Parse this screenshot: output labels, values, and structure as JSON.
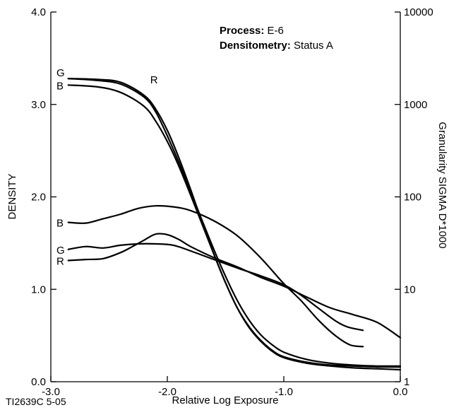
{
  "figure_code": "TI2639C 5-05",
  "annotations": {
    "process_label": "Process:",
    "process_value": " E-6",
    "densitometry_label": "Densitometry:",
    "densitometry_value": " Status A"
  },
  "chart_data": {
    "type": "line",
    "xlabel": "Relative Log Exposure",
    "ylabel": "DENSITY",
    "y2label": "Granularity SIGMA D*1000",
    "xlim": [
      -3.0,
      0.0
    ],
    "ylim": [
      0.0,
      4.0
    ],
    "y2lim": [
      1,
      10000
    ],
    "y2scale": "log",
    "grid": false,
    "x_ticks": [
      -3.0,
      -2.0,
      -1.0,
      0.0
    ],
    "x_tick_labels": [
      "-3.0",
      "-2.0",
      "-1.0",
      "0.0"
    ],
    "y_ticks": [
      0.0,
      1.0,
      2.0,
      3.0,
      4.0
    ],
    "y_tick_labels": [
      "0.0",
      "1.0",
      "2.0",
      "3.0",
      "4.0"
    ],
    "y2_ticks": [
      1,
      10,
      100,
      1000,
      10000
    ],
    "y2_tick_labels": [
      "1",
      "10",
      "100",
      "1000",
      "10000"
    ],
    "density_curves": [
      {
        "name": "G",
        "axis": "left",
        "x": [
          -2.85,
          -2.6,
          -2.4,
          -2.2,
          -2.1,
          -2.0,
          -1.9,
          -1.8,
          -1.7,
          -1.6,
          -1.5,
          -1.4,
          -1.3,
          -1.2,
          -1.1,
          -1.0,
          -0.8,
          -0.6,
          -0.4,
          -0.2,
          0.0
        ],
        "y": [
          3.28,
          3.27,
          3.24,
          3.1,
          2.95,
          2.72,
          2.42,
          2.08,
          1.72,
          1.38,
          1.07,
          0.8,
          0.6,
          0.45,
          0.34,
          0.27,
          0.21,
          0.18,
          0.17,
          0.16,
          0.16
        ]
      },
      {
        "name": "R",
        "axis": "left",
        "x": [
          -2.85,
          -2.6,
          -2.4,
          -2.2,
          -2.1,
          -2.0,
          -1.9,
          -1.8,
          -1.7,
          -1.6,
          -1.5,
          -1.4,
          -1.3,
          -1.2,
          -1.1,
          -1.0,
          -0.8,
          -0.6,
          -0.4,
          -0.2,
          0.0
        ],
        "y": [
          3.28,
          3.26,
          3.22,
          3.08,
          2.92,
          2.66,
          2.37,
          2.06,
          1.74,
          1.43,
          1.14,
          0.88,
          0.67,
          0.51,
          0.4,
          0.32,
          0.24,
          0.2,
          0.18,
          0.17,
          0.17
        ]
      },
      {
        "name": "B",
        "axis": "left",
        "x": [
          -2.85,
          -2.6,
          -2.4,
          -2.2,
          -2.1,
          -2.0,
          -1.9,
          -1.8,
          -1.7,
          -1.6,
          -1.5,
          -1.4,
          -1.3,
          -1.2,
          -1.1,
          -1.0,
          -0.8,
          -0.6,
          -0.4,
          -0.2,
          0.0
        ],
        "y": [
          3.21,
          3.19,
          3.13,
          2.98,
          2.82,
          2.6,
          2.33,
          2.02,
          1.7,
          1.38,
          1.07,
          0.8,
          0.59,
          0.44,
          0.33,
          0.26,
          0.2,
          0.17,
          0.15,
          0.14,
          0.13
        ]
      }
    ],
    "granularity_curves": [
      {
        "name": "B",
        "axis": "right",
        "x": [
          -2.85,
          -2.7,
          -2.55,
          -2.4,
          -2.25,
          -2.1,
          -1.95,
          -1.8,
          -1.6,
          -1.4,
          -1.2,
          -1.0,
          -0.85,
          -0.7,
          -0.55,
          -0.43,
          -0.32
        ],
        "y": [
          53,
          52,
          58,
          65,
          75,
          80,
          78,
          71,
          55,
          38,
          22,
          11.5,
          7.5,
          4.6,
          3.1,
          2.5,
          2.4
        ]
      },
      {
        "name": "G",
        "axis": "right",
        "x": [
          -2.85,
          -2.7,
          -2.55,
          -2.4,
          -2.25,
          -2.1,
          -1.95,
          -1.8,
          -1.6,
          -1.4,
          -1.2,
          -1.0,
          -0.85,
          -0.7,
          -0.55,
          -0.45,
          -0.32
        ],
        "y": [
          27,
          29,
          28,
          30,
          31,
          31,
          30,
          26,
          21,
          17,
          14,
          11.2,
          8.6,
          6.2,
          4.5,
          3.9,
          3.6
        ]
      },
      {
        "name": "R",
        "axis": "right",
        "x": [
          -2.85,
          -2.7,
          -2.55,
          -2.4,
          -2.3,
          -2.2,
          -2.1,
          -2.0,
          -1.9,
          -1.8,
          -1.6,
          -1.4,
          -1.2,
          -1.0,
          -0.8,
          -0.6,
          -0.4,
          -0.2,
          0.0
        ],
        "y": [
          20.5,
          21,
          21.5,
          25,
          29,
          34,
          39.5,
          39,
          34.5,
          29,
          22,
          17.5,
          13.5,
          10.8,
          8.2,
          6.3,
          5.3,
          4.4,
          3.0
        ]
      }
    ]
  }
}
